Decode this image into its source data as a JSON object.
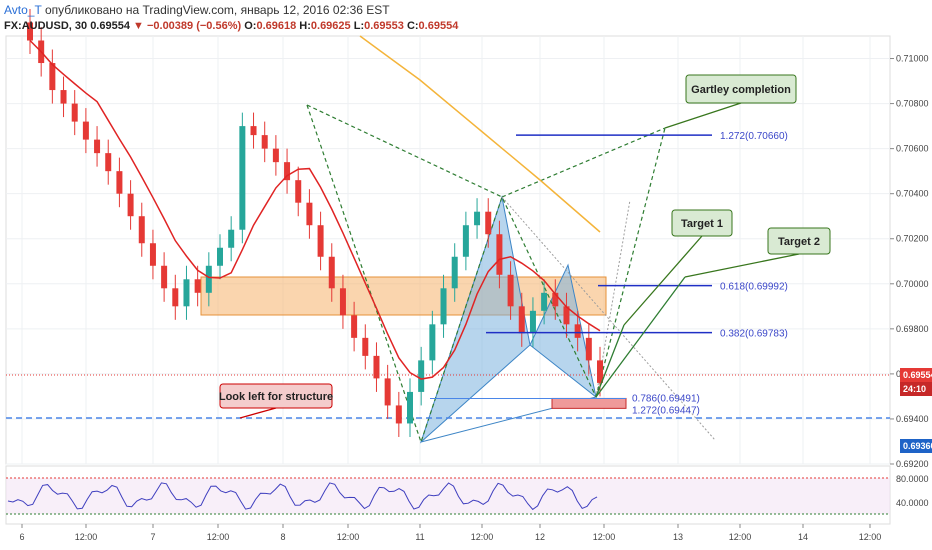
{
  "header": {
    "author": "Avto_T",
    "published": "опубликовано на TradingView.com, январь 12, 2016 02:36 EST",
    "symbol": "FX:AUDUSD, 30",
    "last": "0.69554",
    "change": "−0.00389 (−0.56%)",
    "o_label": "O:",
    "o_value": "0.69618",
    "h_label": "H:",
    "h_value": "0.69625",
    "l_label": "L:",
    "l_value": "0.69553",
    "c_label": "C:",
    "c_value": "0.69554"
  },
  "chart_data": {
    "type": "candlestick",
    "symbol": "FX:AUDUSD",
    "timeframe": "30",
    "ylim": [
      0.692,
      0.711
    ],
    "y_ticks": [
      "0.71000",
      "0.70800",
      "0.70600",
      "0.70400",
      "0.70200",
      "0.70000",
      "0.69800",
      "0.69600",
      "0.69400",
      "0.69200"
    ],
    "x_ticks": [
      "6",
      "12:00",
      "7",
      "12:00",
      "8",
      "12:00",
      "11",
      "12:00",
      "12",
      "12:00",
      "13",
      "12:00",
      "14",
      "12:00"
    ],
    "candles_close_approx": [
      0.7108,
      0.7098,
      0.7086,
      0.708,
      0.7072,
      0.7064,
      0.7058,
      0.705,
      0.704,
      0.703,
      0.7018,
      0.7008,
      0.6998,
      0.699,
      0.7002,
      0.6996,
      0.7008,
      0.7016,
      0.7024,
      0.707,
      0.7066,
      0.706,
      0.7054,
      0.7046,
      0.7036,
      0.7026,
      0.7012,
      0.6998,
      0.6986,
      0.6976,
      0.6968,
      0.6958,
      0.6946,
      0.6938,
      0.6952,
      0.6966,
      0.6982,
      0.6998,
      0.7012,
      0.7026,
      0.7032,
      0.7022,
      0.7004,
      0.699,
      0.6978,
      0.6988,
      0.6996,
      0.699,
      0.6982,
      0.6976,
      0.6966,
      0.6956
    ],
    "series": [
      {
        "name": "",
        "color": "#e02424",
        "kind": "ma"
      },
      {
        "name": "",
        "color": "#f4b43a",
        "kind": "ma"
      }
    ],
    "price_tags": [
      {
        "value": "0.69554",
        "color": "#e53935"
      },
      {
        "value": "24:10",
        "color": "#c62828"
      },
      {
        "value": "0.69360",
        "color": "#1e63c7"
      }
    ],
    "levels": [
      {
        "label": "1.272(0.70660)",
        "value": 0.7066
      },
      {
        "label": "0.618(0.69992)",
        "value": 0.69992
      },
      {
        "label": "0.382(0.69783)",
        "value": 0.69783
      },
      {
        "label": "0.786(0.69491)",
        "value": 0.69491
      },
      {
        "label": "1.272(0.69447)",
        "value": 0.69447
      }
    ],
    "annotations": [
      {
        "text": "Gartley completion"
      },
      {
        "text": "Target 1"
      },
      {
        "text": "Target 2"
      },
      {
        "text": "Look left for structure"
      }
    ],
    "lower_ticks": [
      "80.0000",
      "40.0000"
    ],
    "colors": {
      "up": "#26a69a",
      "down": "#e53935",
      "zone": "#f6b26b",
      "pattern": "#7bb3df",
      "fib": "#1f2fc5",
      "dashed": "#2e7d32"
    }
  }
}
